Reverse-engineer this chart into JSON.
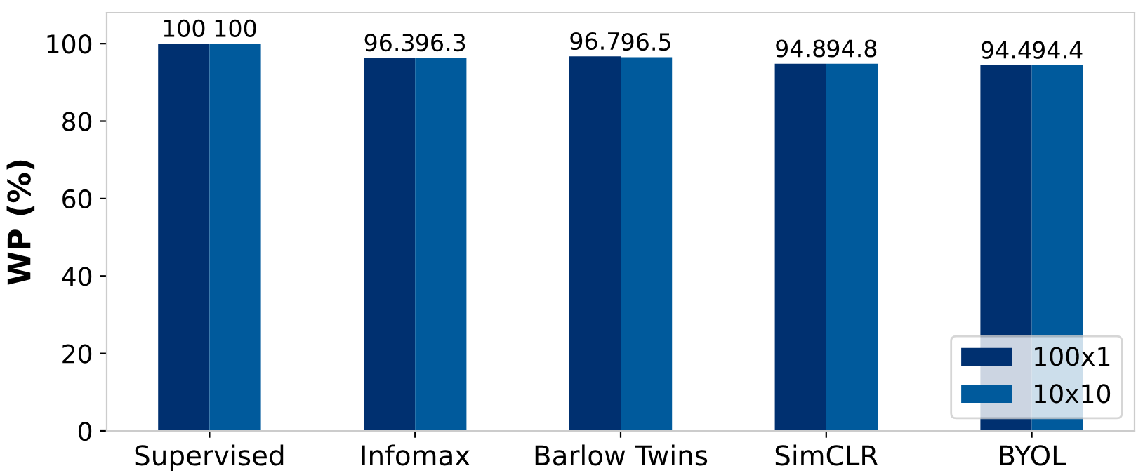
{
  "chart_data": {
    "type": "bar",
    "ylabel": "WP (%)",
    "categories": [
      "Supervised",
      "Infomax",
      "Barlow Twins",
      "SimCLR",
      "BYOL"
    ],
    "series": [
      {
        "name": "100x1",
        "color": "#003070",
        "values": [
          100,
          96.3,
          96.7,
          94.8,
          94.4
        ]
      },
      {
        "name": "10x10",
        "color": "#005a9c",
        "values": [
          100,
          96.3,
          96.5,
          94.8,
          94.4
        ]
      }
    ],
    "ylim": [
      0,
      108
    ],
    "yticks": [
      0,
      20,
      40,
      60,
      80,
      100
    ],
    "data_labels": true,
    "grid": false,
    "legend": "bottom right"
  }
}
